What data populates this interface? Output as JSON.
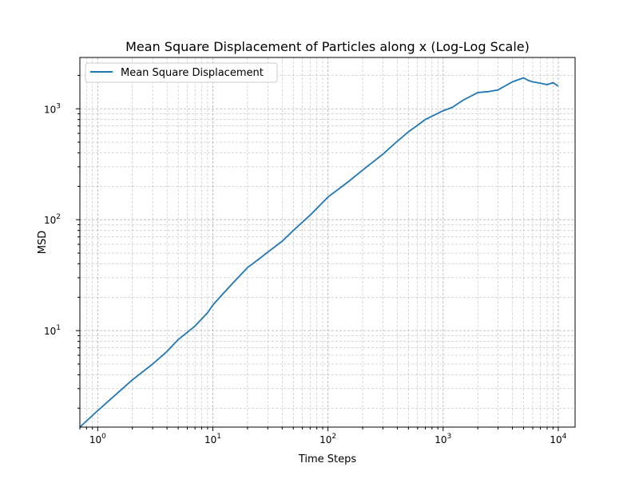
{
  "chart_data": {
    "type": "line",
    "title": "Mean Square Displacement of Particles along x (Log-Log Scale)",
    "xlabel": "Time Steps",
    "ylabel": "MSD",
    "x_scale": "log",
    "y_scale": "log",
    "xlim": [
      0.7,
      14000
    ],
    "ylim": [
      1.35,
      2900
    ],
    "grid": "both major and minor, dashed",
    "legend_position": "top-left",
    "x_ticks": [
      {
        "value": 1,
        "base": "10",
        "exp": "0"
      },
      {
        "value": 10,
        "base": "10",
        "exp": "1"
      },
      {
        "value": 100,
        "base": "10",
        "exp": "2"
      },
      {
        "value": 1000,
        "base": "10",
        "exp": "3"
      },
      {
        "value": 10000,
        "base": "10",
        "exp": "4"
      }
    ],
    "y_ticks": [
      {
        "value": 10,
        "base": "10",
        "exp": "1"
      },
      {
        "value": 100,
        "base": "10",
        "exp": "2"
      },
      {
        "value": 1000,
        "base": "10",
        "exp": "3"
      }
    ],
    "series": [
      {
        "name": "Mean Square Displacement",
        "color": "#1f77b4",
        "points": [
          [
            0.7,
            1.35
          ],
          [
            1,
            1.9
          ],
          [
            2,
            3.6
          ],
          [
            3,
            5.0
          ],
          [
            4,
            6.5
          ],
          [
            5,
            8.3
          ],
          [
            7,
            11.0
          ],
          [
            9,
            14.5
          ],
          [
            10,
            17.0
          ],
          [
            12,
            21.0
          ],
          [
            15,
            27.0
          ],
          [
            20,
            37.0
          ],
          [
            25,
            44.0
          ],
          [
            30,
            51.0
          ],
          [
            40,
            64.0
          ],
          [
            50,
            80.0
          ],
          [
            70,
            110.0
          ],
          [
            100,
            160.0
          ],
          [
            150,
            220.0
          ],
          [
            200,
            280.0
          ],
          [
            300,
            390.0
          ],
          [
            400,
            510.0
          ],
          [
            500,
            620.0
          ],
          [
            700,
            800.0
          ],
          [
            1000,
            960.0
          ],
          [
            1200,
            1030.0
          ],
          [
            1500,
            1200.0
          ],
          [
            2000,
            1400.0
          ],
          [
            2500,
            1430.0
          ],
          [
            3000,
            1480.0
          ],
          [
            4000,
            1750.0
          ],
          [
            5000,
            1900.0
          ],
          [
            5500,
            1800.0
          ],
          [
            6000,
            1750.0
          ],
          [
            7000,
            1700.0
          ],
          [
            8000,
            1650.0
          ],
          [
            9000,
            1720.0
          ],
          [
            10000,
            1600.0
          ]
        ]
      }
    ]
  }
}
